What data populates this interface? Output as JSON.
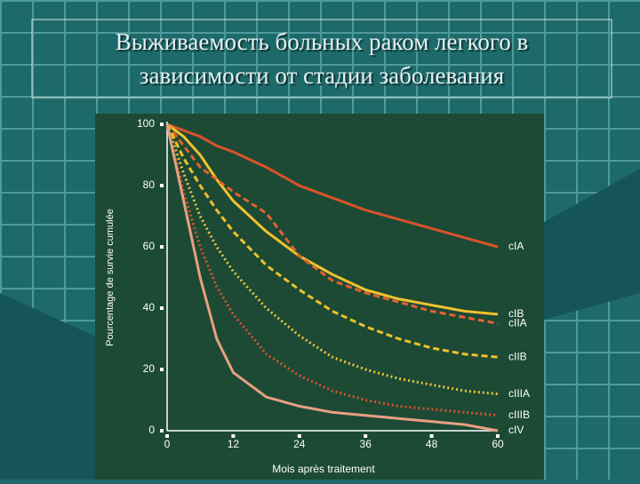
{
  "slide_title": [
    "Выживаемость больных раком легкого в",
    "зависимости от стадии заболевания"
  ],
  "chart_data": {
    "type": "line",
    "x_label": "Mois après traitement",
    "y_label": "Pourcentage de survie cumulée",
    "x": [
      0,
      3,
      6,
      9,
      12,
      18,
      24,
      30,
      36,
      42,
      48,
      54,
      60
    ],
    "xlim": [
      0,
      60
    ],
    "xticks": [
      0,
      12,
      24,
      36,
      48,
      60
    ],
    "ylim": [
      0,
      100
    ],
    "yticks": [
      0,
      20,
      40,
      60,
      80,
      100
    ],
    "series": [
      {
        "name": "cIA",
        "color": "#d9532a",
        "dash": "solid",
        "values": [
          100,
          98,
          96,
          93,
          91,
          86,
          80,
          76,
          72,
          69,
          66,
          63,
          60
        ]
      },
      {
        "name": "cIB",
        "color": "#f2c12e",
        "dash": "solid",
        "values": [
          100,
          96,
          90,
          82,
          75,
          65,
          57,
          51,
          46,
          43,
          41,
          39,
          38
        ]
      },
      {
        "name": "cIIA",
        "color": "#e0622f",
        "dash": "dashed",
        "values": [
          100,
          93,
          86,
          82,
          78,
          71,
          57,
          49,
          45,
          42,
          39,
          37,
          35
        ]
      },
      {
        "name": "cIIB",
        "color": "#f0c02a",
        "dash": "dashed",
        "values": [
          100,
          89,
          80,
          72,
          65,
          54,
          46,
          39,
          34,
          30,
          27,
          25,
          24
        ]
      },
      {
        "name": "cIIIA",
        "color": "#e8c43a",
        "dash": "dotted",
        "values": [
          100,
          84,
          70,
          60,
          52,
          40,
          31,
          24,
          20,
          17,
          15,
          13,
          12
        ]
      },
      {
        "name": "cIIIB",
        "color": "#d9532a",
        "dash": "dotted",
        "values": [
          100,
          78,
          60,
          47,
          38,
          25,
          18,
          13,
          10,
          8,
          7,
          6,
          5
        ]
      },
      {
        "name": "cIV",
        "color": "#e8a080",
        "dash": "solid",
        "values": [
          100,
          75,
          50,
          30,
          19,
          11,
          8,
          6,
          5,
          4,
          3,
          2,
          0
        ]
      }
    ]
  }
}
